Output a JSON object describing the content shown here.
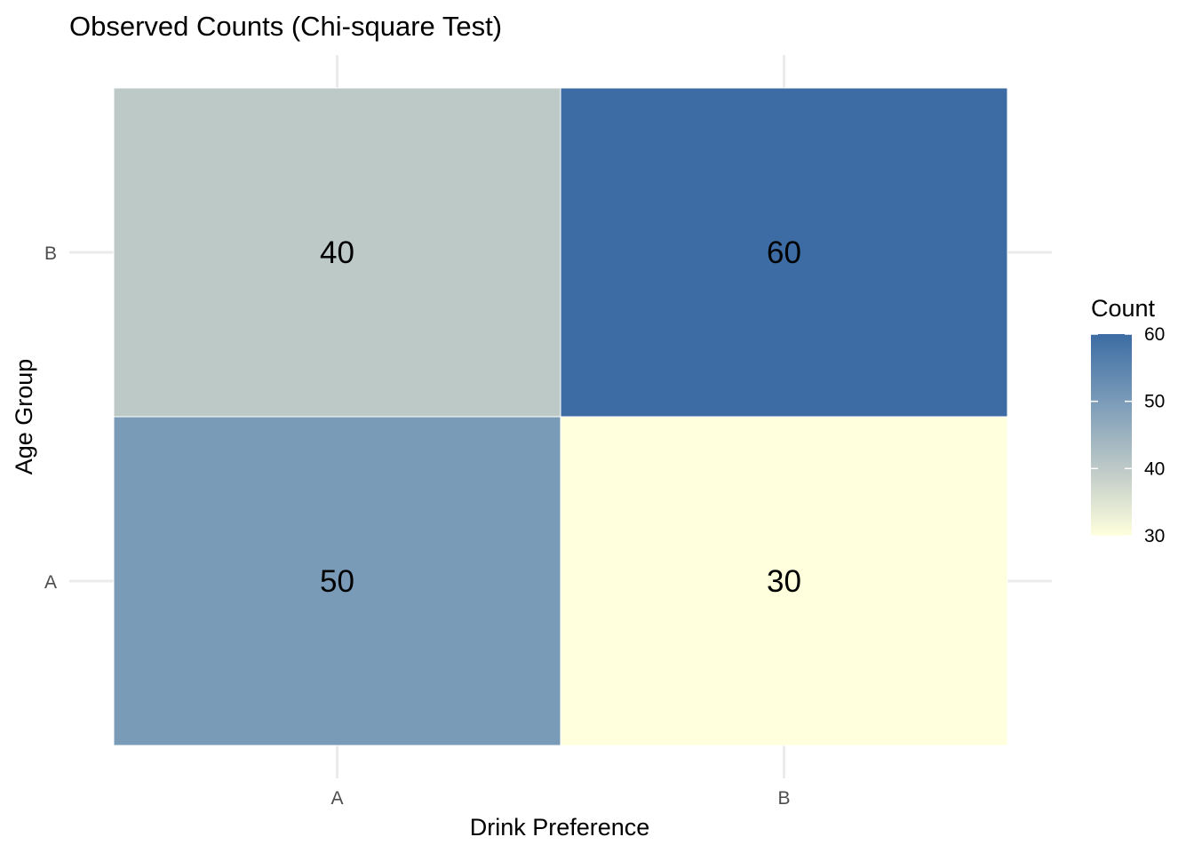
{
  "chart_data": {
    "type": "heatmap",
    "title": "Observed Counts (Chi-square Test)",
    "xlabel": "Drink Preference",
    "ylabel": "Age Group",
    "x_categories": [
      "A",
      "B"
    ],
    "y_categories": [
      "A",
      "B"
    ],
    "cells": [
      {
        "x": "A",
        "y": "B",
        "value": 40
      },
      {
        "x": "B",
        "y": "B",
        "value": 60
      },
      {
        "x": "A",
        "y": "A",
        "value": 50
      },
      {
        "x": "B",
        "y": "A",
        "value": 30
      }
    ],
    "legend": {
      "title": "Count",
      "range": [
        30,
        60
      ],
      "ticks": [
        30,
        40,
        50,
        60
      ],
      "low_color": "#ffffdd",
      "high_color": "#3c6ca3",
      "placement": "right"
    },
    "grid": true
  }
}
